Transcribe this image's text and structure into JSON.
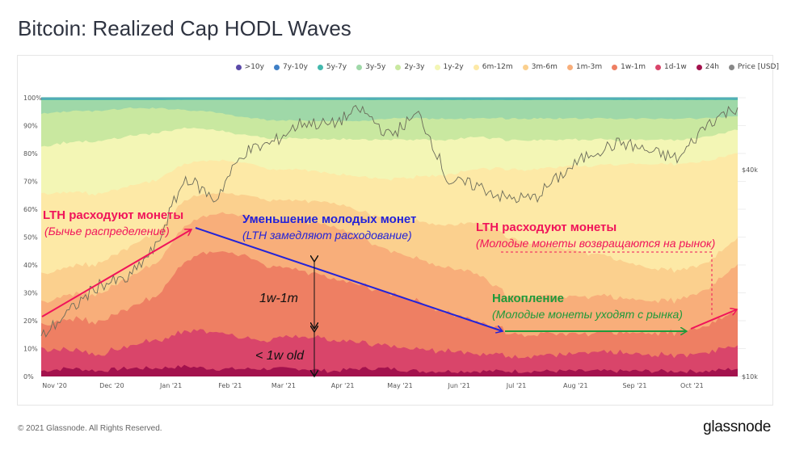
{
  "header": {
    "title": "Bitcoin: Realized Cap HODL Waves"
  },
  "footer": {
    "copyright": "© 2021 Glassnode. All Rights Reserved.",
    "brand": "glassnode"
  },
  "legend": [
    {
      "label": ">10y",
      "color": "#5b4aa8"
    },
    {
      "label": "7y-10y",
      "color": "#3f7fc6"
    },
    {
      "label": "5y-7y",
      "color": "#43b8ad"
    },
    {
      "label": "3y-5y",
      "color": "#9fd8a8"
    },
    {
      "label": "2y-3y",
      "color": "#c9e8a0"
    },
    {
      "label": "1y-2y",
      "color": "#f3f6b5"
    },
    {
      "label": "6m-12m",
      "color": "#fde9a6"
    },
    {
      "label": "3m-6m",
      "color": "#fbd08e"
    },
    {
      "label": "1m-3m",
      "color": "#f8ae7a"
    },
    {
      "label": "1w-1m",
      "color": "#ee7f63"
    },
    {
      "label": "1d-1w",
      "color": "#d9456a"
    },
    {
      "label": "24h",
      "color": "#a3124d"
    },
    {
      "label": "Price [USD]",
      "color": "#888888"
    }
  ],
  "annotations": {
    "lth_spend_1_title": "LTH расходуют монеты",
    "lth_spend_1_sub": "(Бычье распределение)",
    "young_decrease_title": "Уменьшение молодых монет",
    "young_decrease_sub": "(LTH замедляют расходование)",
    "lth_spend_2_title": "LTH расходуют монеты",
    "lth_spend_2_sub": "(Молодые монеты возвращаются на рынок)",
    "accum_title": "Накопление",
    "accum_sub": "(Молодые монеты уходят с рынка)",
    "band_1w_1m": "1w-1m",
    "band_lt_1w": "< 1w old",
    "colors": {
      "red": "#f0145a",
      "blue": "#2323d8",
      "green": "#1f9a3a"
    }
  },
  "chart_data": {
    "type": "area",
    "title": "Bitcoin: Realized Cap HODL Waves",
    "xlabel": "",
    "ylabel": "",
    "stacked": true,
    "ylim": [
      0,
      100
    ],
    "y_ticks": [
      "0%",
      "10%",
      "20%",
      "30%",
      "40%",
      "50%",
      "60%",
      "70%",
      "80%",
      "90%",
      "100%"
    ],
    "y2_ticks": [
      {
        "label": "$10k",
        "value": 10000
      },
      {
        "label": "$40k",
        "value": 40000
      }
    ],
    "y2_scale": "log",
    "x_ticks": [
      "Nov '20",
      "Dec '20",
      "Jan '21",
      "Feb '21",
      "Mar '21",
      "Apr '21",
      "May '21",
      "Jun '21",
      "Jul '21",
      "Aug '21",
      "Sep '21",
      "Oct '21"
    ],
    "legend_position": "top-right",
    "grid": true,
    "x": [
      "2020-10-25",
      "2020-11-10",
      "2020-11-25",
      "2020-12-10",
      "2020-12-25",
      "2021-01-10",
      "2021-01-25",
      "2021-02-10",
      "2021-02-25",
      "2021-03-10",
      "2021-03-25",
      "2021-04-10",
      "2021-04-25",
      "2021-05-10",
      "2021-05-25",
      "2021-06-10",
      "2021-06-25",
      "2021-07-10",
      "2021-07-25",
      "2021-08-10",
      "2021-08-25",
      "2021-09-10",
      "2021-09-25",
      "2021-10-10",
      "2021-10-25"
    ],
    "series": [
      {
        "name": "24h",
        "values": [
          2,
          3,
          2,
          3,
          3,
          4,
          3,
          3,
          3,
          3,
          2,
          3,
          3,
          2,
          2,
          2,
          2,
          2,
          2,
          2,
          2,
          2,
          2,
          2,
          3
        ]
      },
      {
        "name": "1d-1w",
        "values": [
          8,
          7,
          6,
          8,
          10,
          14,
          15,
          12,
          11,
          13,
          12,
          10,
          9,
          8,
          8,
          7,
          6,
          6,
          6,
          7,
          7,
          6,
          6,
          7,
          9
        ]
      },
      {
        "name": "1w-1m",
        "values": [
          9,
          11,
          12,
          14,
          16,
          28,
          32,
          33,
          28,
          25,
          24,
          22,
          20,
          18,
          14,
          12,
          9,
          8,
          8,
          7,
          8,
          8,
          9,
          10,
          13
        ]
      },
      {
        "name": "1m-3m",
        "values": [
          8,
          9,
          10,
          11,
          12,
          14,
          15,
          16,
          18,
          19,
          20,
          18,
          16,
          16,
          17,
          18,
          14,
          14,
          14,
          14,
          13,
          12,
          12,
          14,
          17
        ]
      },
      {
        "name": "3m-6m",
        "values": [
          10,
          10,
          11,
          11,
          11,
          10,
          8,
          8,
          8,
          8,
          9,
          10,
          12,
          14,
          16,
          19,
          22,
          20,
          18,
          16,
          14,
          12,
          11,
          10,
          10
        ]
      },
      {
        "name": "6m-12m",
        "values": [
          29,
          27,
          25,
          22,
          19,
          14,
          13,
          13,
          12,
          12,
          11,
          13,
          15,
          17,
          19,
          20,
          25,
          28,
          31,
          33,
          36,
          39,
          40,
          38,
          32
        ]
      },
      {
        "name": "1y-2y",
        "values": [
          17,
          18,
          19,
          18,
          17,
          14,
          12,
          11,
          12,
          12,
          13,
          14,
          15,
          14,
          13,
          12,
          11,
          11,
          10,
          10,
          9,
          9,
          9,
          9,
          9
        ]
      },
      {
        "name": "2y-3y",
        "values": [
          12,
          11,
          11,
          10,
          9,
          7,
          7,
          7,
          7,
          7,
          7,
          7,
          8,
          8,
          8,
          7,
          8,
          8,
          8,
          8,
          8,
          8,
          8,
          7,
          5
        ]
      },
      {
        "name": "3y-5y",
        "values": [
          5,
          4,
          4,
          3,
          3,
          4,
          5,
          7,
          8,
          8,
          8,
          8,
          7,
          7,
          7,
          7,
          7,
          7,
          7,
          7,
          7,
          7,
          7,
          7,
          6
        ]
      },
      {
        "name": "5y-7y",
        "values": [
          0.4,
          0.4,
          0.4,
          0.4,
          0.4,
          0.4,
          0.4,
          0.4,
          0.4,
          0.4,
          0.4,
          0.4,
          0.4,
          0.4,
          0.4,
          0.4,
          0.4,
          0.4,
          0.4,
          0.4,
          0.4,
          0.4,
          0.4,
          0.4,
          0.4
        ]
      },
      {
        "name": "7y-10y",
        "values": [
          0.3,
          0.3,
          0.3,
          0.3,
          0.3,
          0.3,
          0.3,
          0.3,
          0.3,
          0.3,
          0.3,
          0.3,
          0.3,
          0.3,
          0.3,
          0.3,
          0.3,
          0.3,
          0.3,
          0.3,
          0.3,
          0.3,
          0.3,
          0.3,
          0.3
        ]
      },
      {
        "name": ">10y",
        "values": [
          0.1,
          0.1,
          0.1,
          0.1,
          0.1,
          0.1,
          0.1,
          0.1,
          0.1,
          0.1,
          0.1,
          0.1,
          0.1,
          0.1,
          0.1,
          0.1,
          0.1,
          0.1,
          0.1,
          0.1,
          0.1,
          0.1,
          0.1,
          0.1,
          0.1
        ]
      }
    ],
    "price": {
      "name": "Price [USD]",
      "values": [
        13000,
        15500,
        18500,
        19200,
        24000,
        38000,
        32500,
        45000,
        48000,
        55000,
        54000,
        60000,
        50000,
        58000,
        37000,
        36000,
        33000,
        33000,
        39000,
        45000,
        48000,
        45000,
        43000,
        55000,
        61000
      ]
    }
  }
}
